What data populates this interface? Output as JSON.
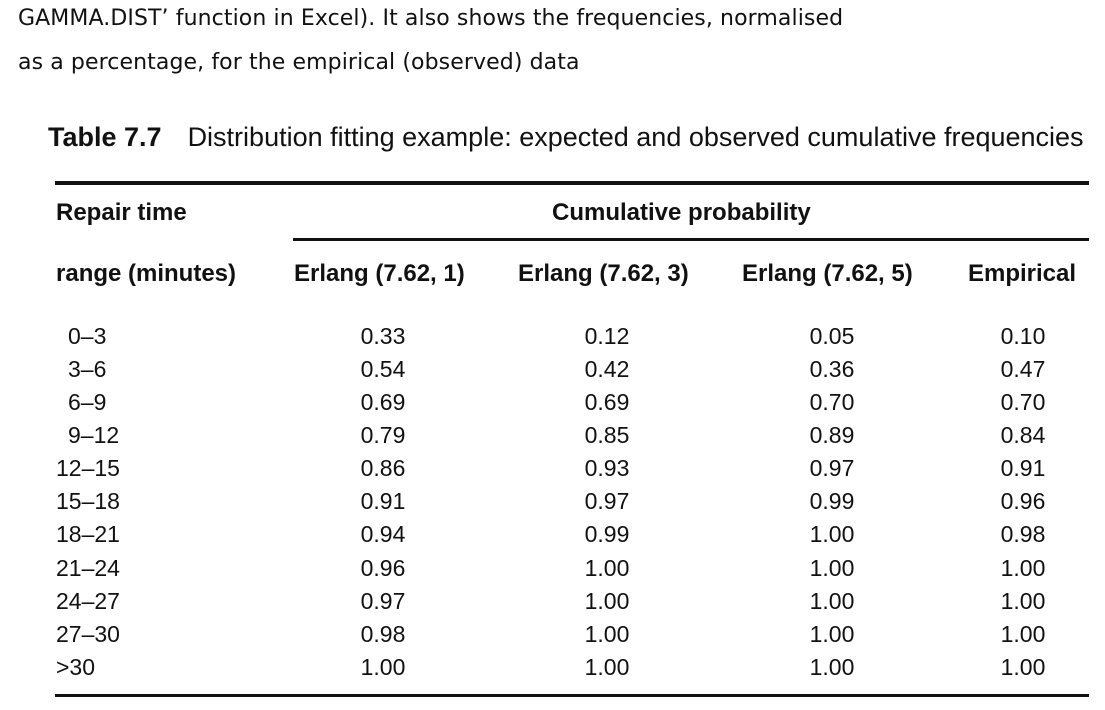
{
  "intro": {
    "line1": "GAMMA.DIST’ function in Excel). It also shows the frequencies, normalised",
    "line2": "as a percentage, for the empirical (observed) data"
  },
  "caption": {
    "number": "Table 7.7",
    "text": "Distribution fitting example: expected and observed cumulative frequencies"
  },
  "table": {
    "header_row1": {
      "repair": "Repair time",
      "cumulative": "Cumulative probability"
    },
    "header_row2": {
      "range": "range (minutes)",
      "columns": [
        "Erlang (7.62, 1)",
        "Erlang (7.62, 3)",
        "Erlang (7.62, 5)",
        "Empirical"
      ]
    },
    "rows": [
      {
        "range": "0–3",
        "values": [
          "0.33",
          "0.12",
          "0.05",
          "0.10"
        ]
      },
      {
        "range": "3–6",
        "values": [
          "0.54",
          "0.42",
          "0.36",
          "0.47"
        ]
      },
      {
        "range": "6–9",
        "values": [
          "0.69",
          "0.69",
          "0.70",
          "0.70"
        ]
      },
      {
        "range": "9–12",
        "values": [
          "0.79",
          "0.85",
          "0.89",
          "0.84"
        ]
      },
      {
        "range": "12–15",
        "values": [
          "0.86",
          "0.93",
          "0.97",
          "0.91"
        ]
      },
      {
        "range": "15–18",
        "values": [
          "0.91",
          "0.97",
          "0.99",
          "0.96"
        ]
      },
      {
        "range": "18–21",
        "values": [
          "0.94",
          "0.99",
          "1.00",
          "0.98"
        ]
      },
      {
        "range": "21–24",
        "values": [
          "0.96",
          "1.00",
          "1.00",
          "1.00"
        ]
      },
      {
        "range": "24–27",
        "values": [
          "0.97",
          "1.00",
          "1.00",
          "1.00"
        ]
      },
      {
        "range": "27–30",
        "values": [
          "0.98",
          "1.00",
          "1.00",
          "1.00"
        ]
      },
      {
        "range": ">30",
        "values": [
          "1.00",
          "1.00",
          "1.00",
          "1.00"
        ]
      }
    ]
  }
}
